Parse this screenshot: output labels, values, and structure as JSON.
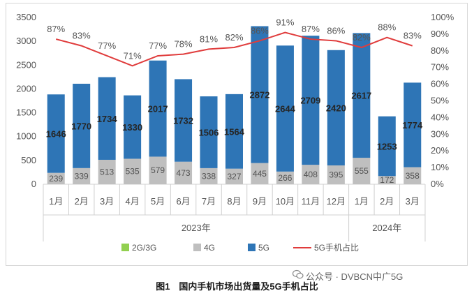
{
  "chart_data": {
    "type": "bar",
    "stacked": true,
    "categories": [
      "1月",
      "2月",
      "3月",
      "4月",
      "5月",
      "6月",
      "7月",
      "8月",
      "9月",
      "10月",
      "11月",
      "12月",
      "1月",
      "2月",
      "3月"
    ],
    "groups": [
      {
        "label": "2023年",
        "from": 0,
        "to": 11
      },
      {
        "label": "2024年",
        "from": 12,
        "to": 14
      }
    ],
    "series": [
      {
        "name": "2G/3G",
        "kind": "bar",
        "color": "#92d050",
        "values": [
          0,
          0,
          0,
          0,
          0,
          0,
          0,
          0,
          0,
          0,
          0,
          0,
          0,
          0,
          0
        ]
      },
      {
        "name": "4G",
        "kind": "bar",
        "color": "#bfbfbf",
        "values": [
          239,
          339,
          513,
          535,
          579,
          473,
          338,
          327,
          445,
          266,
          408,
          395,
          555,
          172,
          358
        ]
      },
      {
        "name": "5G",
        "kind": "bar",
        "color": "#2e75b6",
        "values": [
          1646,
          1770,
          1734,
          1330,
          2017,
          1732,
          1506,
          1564,
          2872,
          2644,
          2709,
          2420,
          2617,
          1253,
          1774
        ]
      },
      {
        "name": "5G手机占比",
        "kind": "line",
        "color": "#e03c3c",
        "axis": "right",
        "values": [
          87,
          83,
          77,
          71,
          77,
          78,
          81,
          82,
          86,
          91,
          87,
          86,
          82,
          88,
          83
        ]
      }
    ],
    "y_left": {
      "min": 0,
      "max": 3500,
      "ticks": [
        "0",
        "500",
        "1000",
        "1500",
        "2000",
        "2500",
        "3000",
        "3500"
      ]
    },
    "y_right": {
      "min": 0,
      "max": 100,
      "ticks": [
        "0%",
        "10%",
        "20%",
        "30%",
        "40%",
        "50%",
        "60%",
        "70%",
        "80%",
        "90%",
        "100%"
      ]
    },
    "legend": {
      "placement": "bottom"
    }
  },
  "caption": "图1　国内手机市场出货量及5G手机占比",
  "watermark": "公众号 · DVBCN中广5G"
}
